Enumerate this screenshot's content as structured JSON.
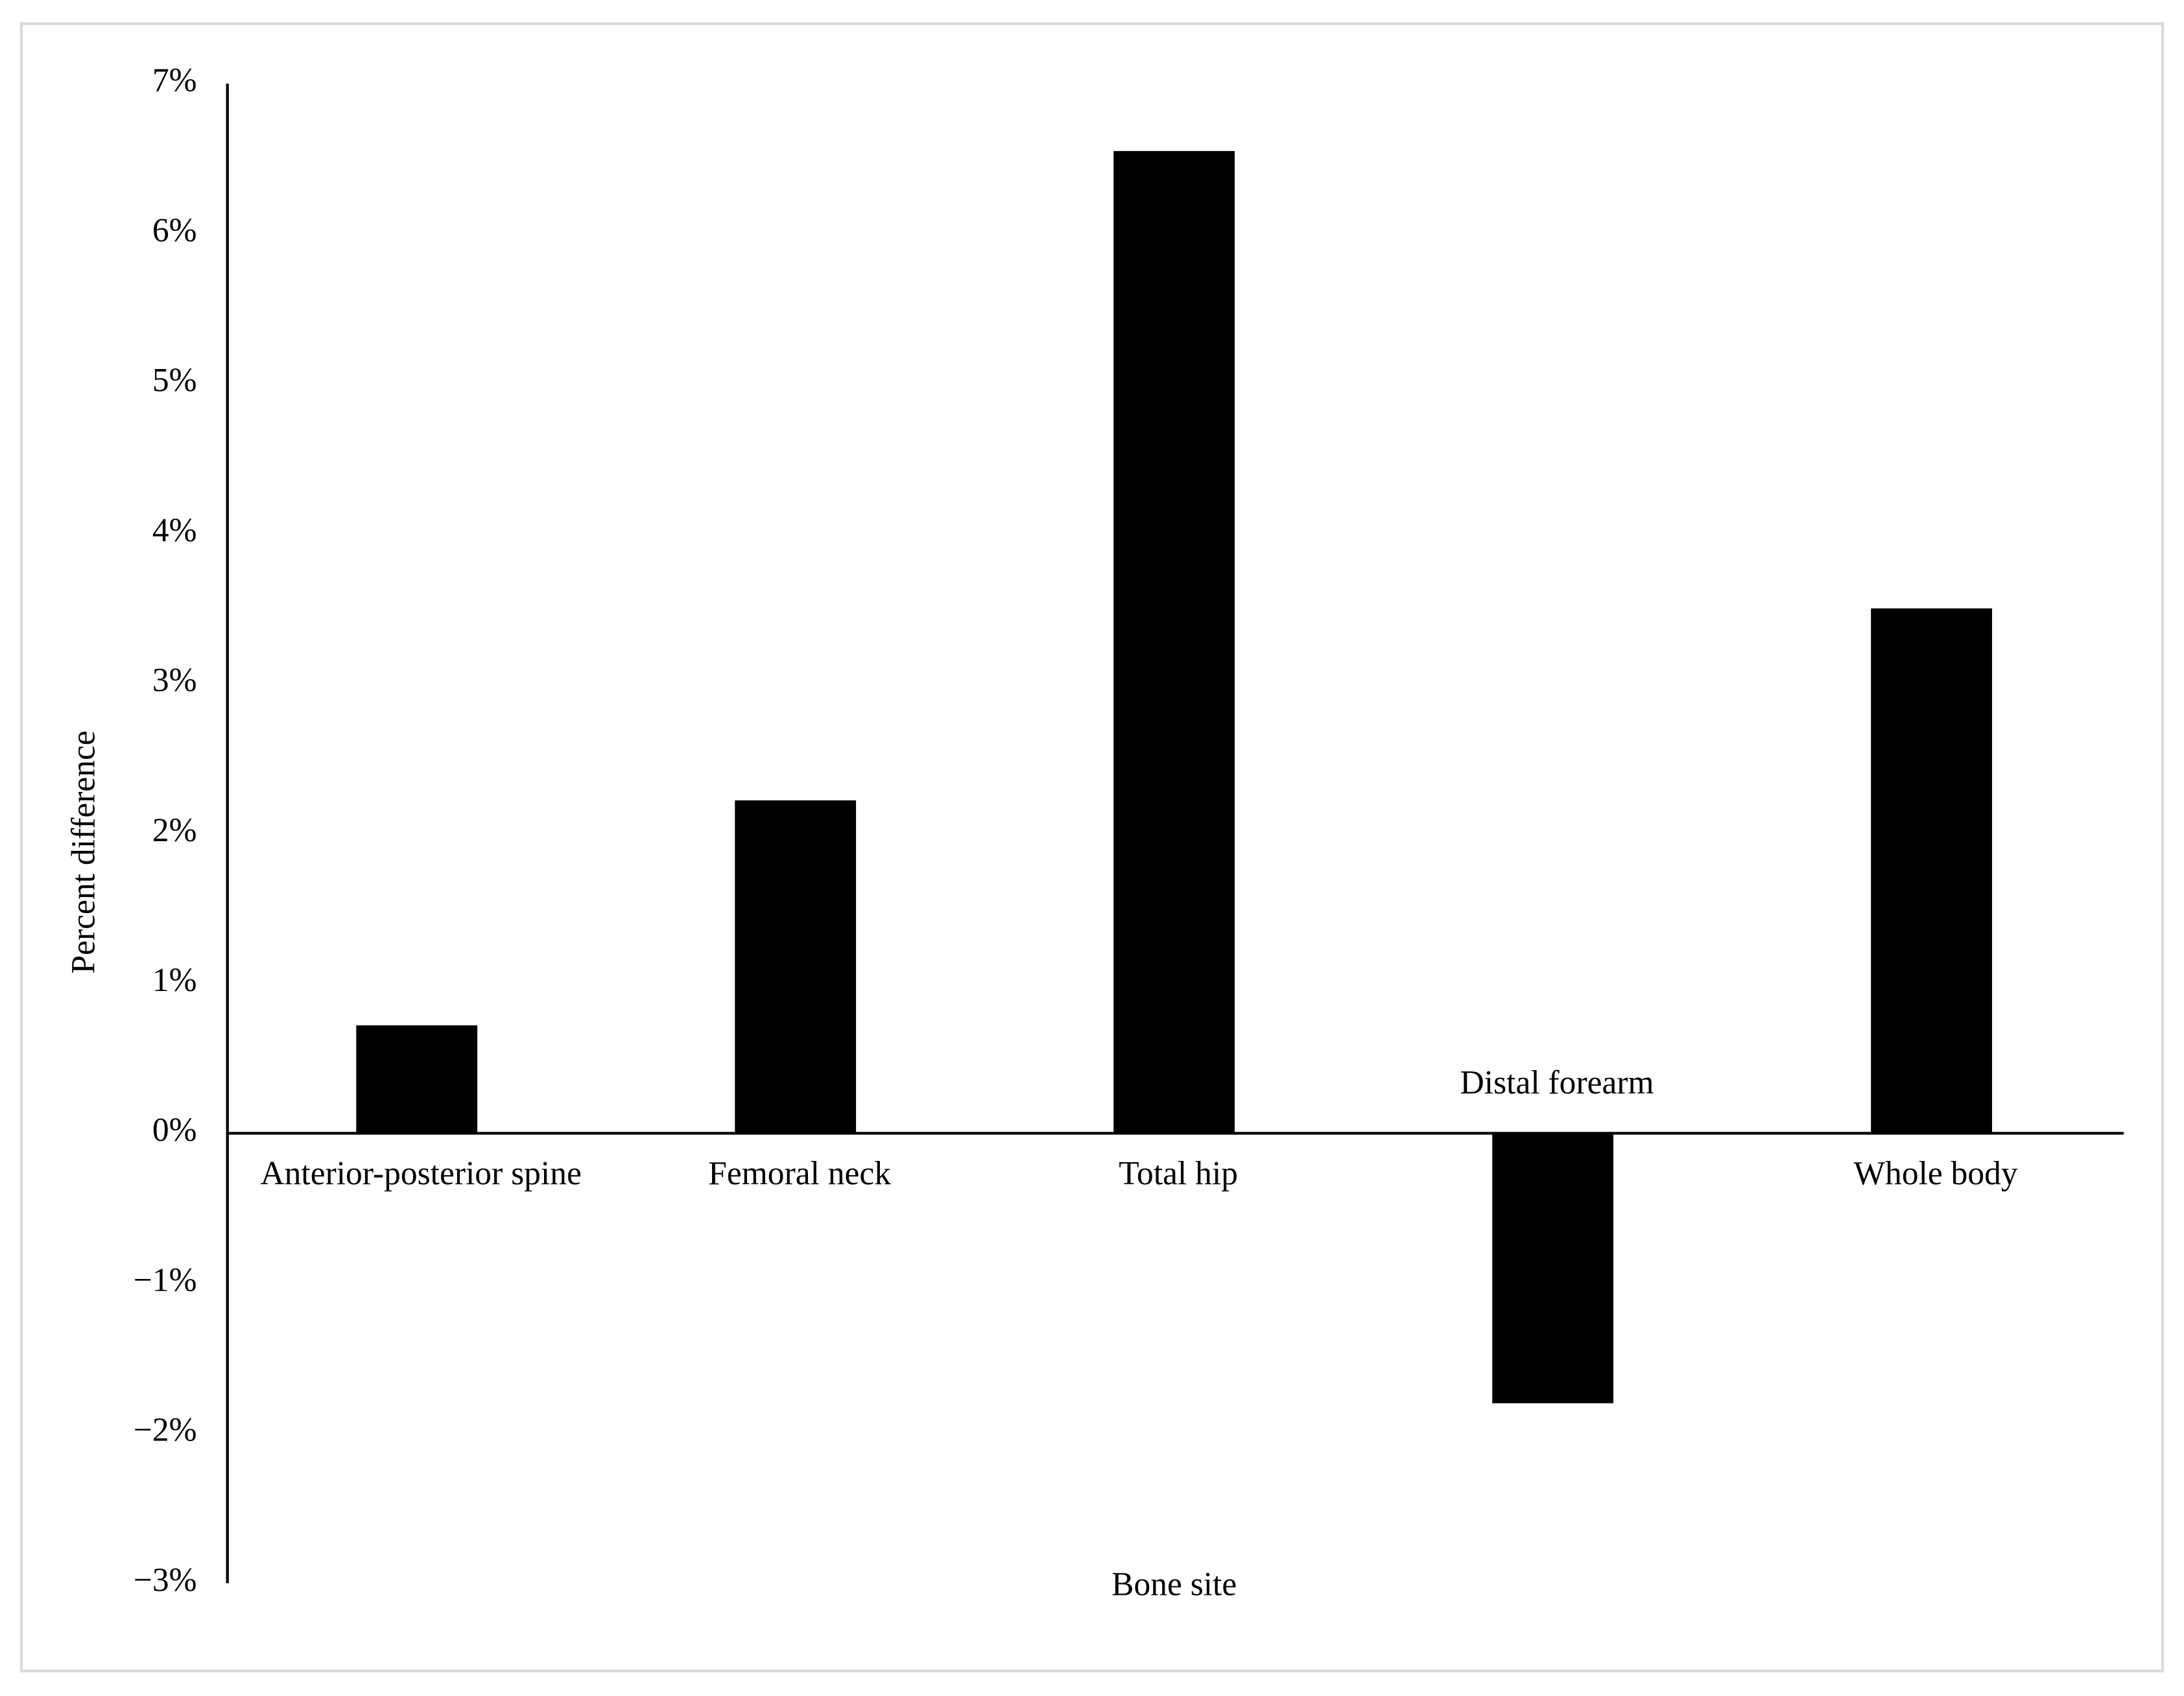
{
  "chart_data": {
    "type": "bar",
    "categories": [
      "Anterior-posterior spine",
      "Femoral neck",
      "Total hip",
      "Distal forearm",
      "Whole body"
    ],
    "values": [
      0.72,
      2.22,
      6.55,
      -1.8,
      3.5
    ],
    "color": "#000000",
    "x_label": "Bone site",
    "y_label": "Percent difference",
    "ylim": [
      -3,
      7
    ],
    "yticks": [
      {
        "value": -3,
        "label": "−3%"
      },
      {
        "value": -2,
        "label": "−2%"
      },
      {
        "value": -1,
        "label": "−1%"
      },
      {
        "value": 0,
        "label": "0%"
      },
      {
        "value": 1,
        "label": "1%"
      },
      {
        "value": 2,
        "label": "2%"
      },
      {
        "value": 3,
        "label": "3%"
      },
      {
        "value": 4,
        "label": "4%"
      },
      {
        "value": 5,
        "label": "5%"
      },
      {
        "value": 6,
        "label": "6%"
      },
      {
        "value": 7,
        "label": "7%"
      }
    ],
    "grid": false
  }
}
